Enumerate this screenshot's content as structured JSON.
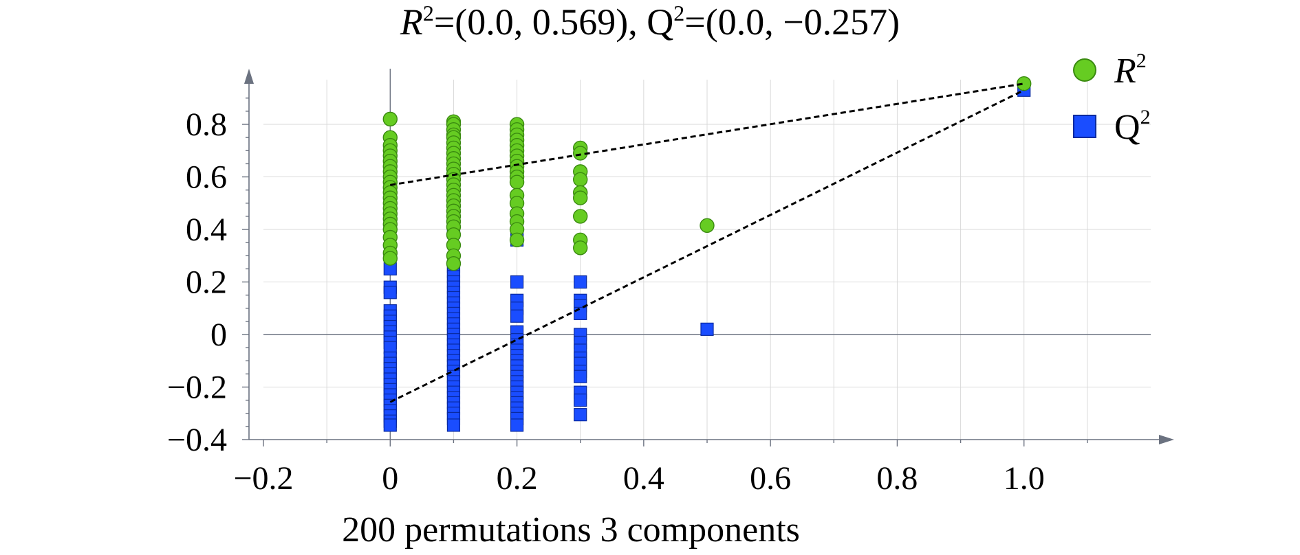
{
  "chart_data": {
    "type": "scatter",
    "title": {
      "r2_symbol": "R",
      "r2_sup": "2",
      "r2_value": "=(0.0, 0.569), ",
      "q2_symbol": "Q",
      "q2_sup": "2",
      "q2_value": "=(0.0, −0.257)"
    },
    "xlabel": "200 permutations 3 components",
    "ylabel": "",
    "xlim": [
      -0.2,
      1.2
    ],
    "ylim": [
      -0.4,
      0.97
    ],
    "x_ticks": [
      {
        "value": -0.2,
        "label": "−0.2"
      },
      {
        "value": 0,
        "label": "0"
      },
      {
        "value": 0.2,
        "label": "0.2"
      },
      {
        "value": 0.4,
        "label": "0.4"
      },
      {
        "value": 0.6,
        "label": "0.6"
      },
      {
        "value": 0.8,
        "label": "0.8"
      },
      {
        "value": 1.0,
        "label": "1.0"
      }
    ],
    "y_ticks": [
      {
        "value": -0.4,
        "label": "−0.4"
      },
      {
        "value": -0.2,
        "label": "−0.2"
      },
      {
        "value": 0,
        "label": "0"
      },
      {
        "value": 0.2,
        "label": "0.2"
      },
      {
        "value": 0.4,
        "label": "0.4"
      },
      {
        "value": 0.6,
        "label": "0.6"
      },
      {
        "value": 0.8,
        "label": "0.8"
      }
    ],
    "grid": true,
    "legend_position": "top-right",
    "series": [
      {
        "name": "R2",
        "legend_symbol": "R",
        "legend_sup": "2",
        "marker": "circle",
        "color": "#66cc22",
        "edge_color": "#3a8a10",
        "points": [
          [
            0,
            0.82
          ],
          [
            0,
            0.75
          ],
          [
            0,
            0.72
          ],
          [
            0,
            0.7
          ],
          [
            0,
            0.68
          ],
          [
            0,
            0.66
          ],
          [
            0,
            0.64
          ],
          [
            0,
            0.62
          ],
          [
            0,
            0.6
          ],
          [
            0,
            0.58
          ],
          [
            0,
            0.56
          ],
          [
            0,
            0.54
          ],
          [
            0,
            0.52
          ],
          [
            0,
            0.5
          ],
          [
            0,
            0.48
          ],
          [
            0,
            0.46
          ],
          [
            0,
            0.44
          ],
          [
            0,
            0.42
          ],
          [
            0,
            0.4
          ],
          [
            0,
            0.37
          ],
          [
            0,
            0.34
          ],
          [
            0,
            0.31
          ],
          [
            0,
            0.29
          ],
          [
            0.1,
            0.81
          ],
          [
            0.1,
            0.8
          ],
          [
            0.1,
            0.78
          ],
          [
            0.1,
            0.76
          ],
          [
            0.1,
            0.75
          ],
          [
            0.1,
            0.73
          ],
          [
            0.1,
            0.71
          ],
          [
            0.1,
            0.69
          ],
          [
            0.1,
            0.67
          ],
          [
            0.1,
            0.65
          ],
          [
            0.1,
            0.63
          ],
          [
            0.1,
            0.61
          ],
          [
            0.1,
            0.59
          ],
          [
            0.1,
            0.57
          ],
          [
            0.1,
            0.55
          ],
          [
            0.1,
            0.53
          ],
          [
            0.1,
            0.51
          ],
          [
            0.1,
            0.49
          ],
          [
            0.1,
            0.47
          ],
          [
            0.1,
            0.45
          ],
          [
            0.1,
            0.43
          ],
          [
            0.1,
            0.41
          ],
          [
            0.1,
            0.38
          ],
          [
            0.1,
            0.34
          ],
          [
            0.1,
            0.3
          ],
          [
            0.1,
            0.27
          ],
          [
            0.2,
            0.8
          ],
          [
            0.2,
            0.78
          ],
          [
            0.2,
            0.76
          ],
          [
            0.2,
            0.74
          ],
          [
            0.2,
            0.72
          ],
          [
            0.2,
            0.7
          ],
          [
            0.2,
            0.68
          ],
          [
            0.2,
            0.66
          ],
          [
            0.2,
            0.64
          ],
          [
            0.2,
            0.62
          ],
          [
            0.2,
            0.6
          ],
          [
            0.2,
            0.58
          ],
          [
            0.2,
            0.53
          ],
          [
            0.2,
            0.5
          ],
          [
            0.2,
            0.46
          ],
          [
            0.2,
            0.43
          ],
          [
            0.2,
            0.4
          ],
          [
            0.2,
            0.36
          ],
          [
            0.3,
            0.71
          ],
          [
            0.3,
            0.69
          ],
          [
            0.3,
            0.62
          ],
          [
            0.3,
            0.59
          ],
          [
            0.3,
            0.54
          ],
          [
            0.3,
            0.52
          ],
          [
            0.3,
            0.45
          ],
          [
            0.3,
            0.36
          ],
          [
            0.3,
            0.33
          ],
          [
            0.5,
            0.415
          ],
          [
            1.0,
            0.955
          ]
        ]
      },
      {
        "name": "Q2",
        "legend_symbol": "Q",
        "legend_sup": "2",
        "marker": "square",
        "color": "#1a4dff",
        "edge_color": "#0a2aa0",
        "points": [
          [
            0,
            0.25
          ],
          [
            0,
            0.18
          ],
          [
            0,
            0.16
          ],
          [
            0,
            0.09
          ],
          [
            0,
            0.07
          ],
          [
            0,
            0.05
          ],
          [
            0,
            0.03
          ],
          [
            0,
            0.01
          ],
          [
            0,
            -0.01
          ],
          [
            0,
            -0.03
          ],
          [
            0,
            -0.05
          ],
          [
            0,
            -0.09
          ],
          [
            0,
            -0.11
          ],
          [
            0,
            -0.13
          ],
          [
            0,
            -0.15
          ],
          [
            0,
            -0.17
          ],
          [
            0,
            -0.19
          ],
          [
            0,
            -0.21
          ],
          [
            0,
            -0.23
          ],
          [
            0,
            -0.25
          ],
          [
            0,
            -0.27
          ],
          [
            0,
            -0.29
          ],
          [
            0,
            -0.31
          ],
          [
            0,
            -0.33
          ],
          [
            0,
            -0.345
          ],
          [
            0.1,
            0.4
          ],
          [
            0.1,
            0.39
          ],
          [
            0.1,
            0.26
          ],
          [
            0.1,
            0.24
          ],
          [
            0.1,
            0.22
          ],
          [
            0.1,
            0.2
          ],
          [
            0.1,
            0.18
          ],
          [
            0.1,
            0.16
          ],
          [
            0.1,
            0.14
          ],
          [
            0.1,
            0.12
          ],
          [
            0.1,
            0.1
          ],
          [
            0.1,
            0.08
          ],
          [
            0.1,
            0.06
          ],
          [
            0.1,
            0.04
          ],
          [
            0.1,
            0.02
          ],
          [
            0.1,
            0.0
          ],
          [
            0.1,
            -0.02
          ],
          [
            0.1,
            -0.04
          ],
          [
            0.1,
            -0.06
          ],
          [
            0.1,
            -0.08
          ],
          [
            0.1,
            -0.1
          ],
          [
            0.1,
            -0.12
          ],
          [
            0.1,
            -0.14
          ],
          [
            0.1,
            -0.16
          ],
          [
            0.1,
            -0.18
          ],
          [
            0.1,
            -0.2
          ],
          [
            0.1,
            -0.22
          ],
          [
            0.1,
            -0.24
          ],
          [
            0.1,
            -0.26
          ],
          [
            0.1,
            -0.28
          ],
          [
            0.1,
            -0.3
          ],
          [
            0.1,
            -0.32
          ],
          [
            0.1,
            -0.345
          ],
          [
            0.2,
            0.38
          ],
          [
            0.2,
            0.36
          ],
          [
            0.2,
            0.2
          ],
          [
            0.2,
            0.13
          ],
          [
            0.2,
            0.1
          ],
          [
            0.2,
            0.07
          ],
          [
            0.2,
            0.01
          ],
          [
            0.2,
            -0.02
          ],
          [
            0.2,
            -0.04
          ],
          [
            0.2,
            -0.06
          ],
          [
            0.2,
            -0.08
          ],
          [
            0.2,
            -0.1
          ],
          [
            0.2,
            -0.12
          ],
          [
            0.2,
            -0.14
          ],
          [
            0.2,
            -0.16
          ],
          [
            0.2,
            -0.18
          ],
          [
            0.2,
            -0.2
          ],
          [
            0.2,
            -0.22
          ],
          [
            0.2,
            -0.24
          ],
          [
            0.2,
            -0.26
          ],
          [
            0.2,
            -0.28
          ],
          [
            0.2,
            -0.3
          ],
          [
            0.2,
            -0.32
          ],
          [
            0.2,
            -0.345
          ],
          [
            0.3,
            0.2
          ],
          [
            0.3,
            0.13
          ],
          [
            0.3,
            0.11
          ],
          [
            0.3,
            0.08
          ],
          [
            0.3,
            0.0
          ],
          [
            0.3,
            -0.03
          ],
          [
            0.3,
            -0.06
          ],
          [
            0.3,
            -0.09
          ],
          [
            0.3,
            -0.11
          ],
          [
            0.3,
            -0.14
          ],
          [
            0.3,
            -0.16
          ],
          [
            0.3,
            -0.22
          ],
          [
            0.3,
            -0.25
          ],
          [
            0.3,
            -0.305
          ],
          [
            0.5,
            0.02
          ],
          [
            1.0,
            0.93
          ]
        ]
      }
    ],
    "regression_lines": [
      {
        "series": "R2",
        "from": [
          0,
          0.569
        ],
        "to": [
          1.0,
          0.955
        ]
      },
      {
        "series": "Q2",
        "from": [
          0,
          -0.257
        ],
        "to": [
          1.0,
          0.93
        ]
      }
    ],
    "colors": {
      "axis": "#6b7280",
      "grid": "#d9d9d9",
      "zero_line": "#6b7280",
      "regression": "#000000"
    }
  }
}
